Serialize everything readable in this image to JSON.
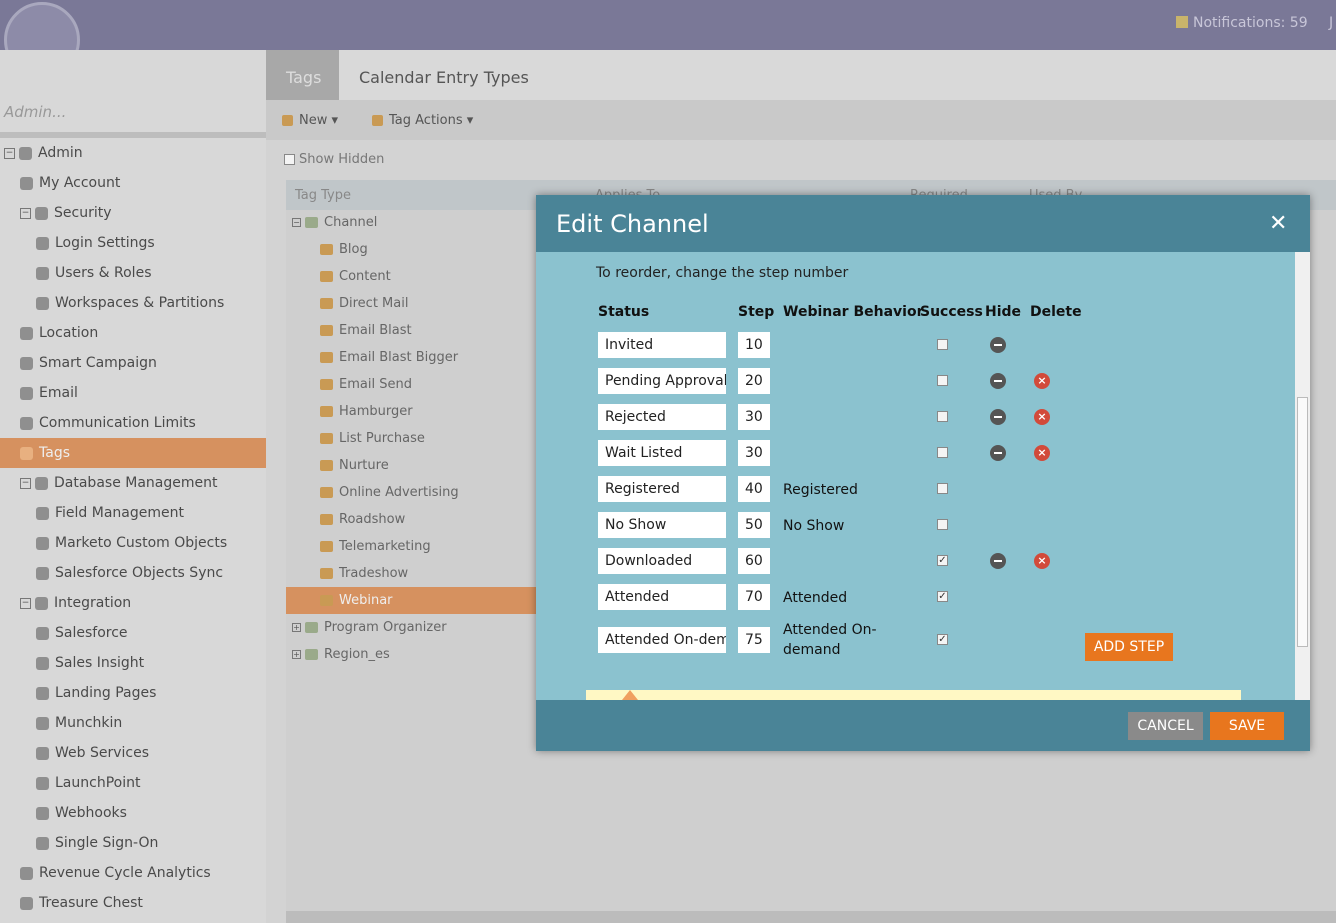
{
  "header": {
    "notifications": "Notifications: 59",
    "user": "J"
  },
  "sidebar": {
    "search": "Admin...",
    "items": [
      {
        "label": "Admin",
        "level": 0,
        "expanded": true
      },
      {
        "label": "My Account",
        "level": 1
      },
      {
        "label": "Security",
        "level": 1,
        "expanded": true
      },
      {
        "label": "Login Settings",
        "level": 2
      },
      {
        "label": "Users & Roles",
        "level": 2
      },
      {
        "label": "Workspaces & Partitions",
        "level": 2
      },
      {
        "label": "Location",
        "level": 1
      },
      {
        "label": "Smart Campaign",
        "level": 1
      },
      {
        "label": "Email",
        "level": 1
      },
      {
        "label": "Communication Limits",
        "level": 1
      },
      {
        "label": "Tags",
        "level": 1,
        "selected": true
      },
      {
        "label": "Database Management",
        "level": 1,
        "expanded": true
      },
      {
        "label": "Field Management",
        "level": 2
      },
      {
        "label": "Marketo Custom Objects",
        "level": 2
      },
      {
        "label": "Salesforce Objects Sync",
        "level": 2
      },
      {
        "label": "Integration",
        "level": 1,
        "expanded": true
      },
      {
        "label": "Salesforce",
        "level": 2
      },
      {
        "label": "Sales Insight",
        "level": 2
      },
      {
        "label": "Landing Pages",
        "level": 2
      },
      {
        "label": "Munchkin",
        "level": 2
      },
      {
        "label": "Web Services",
        "level": 2
      },
      {
        "label": "LaunchPoint",
        "level": 2
      },
      {
        "label": "Webhooks",
        "level": 2
      },
      {
        "label": "Single Sign-On",
        "level": 2
      },
      {
        "label": "Revenue Cycle Analytics",
        "level": 1
      },
      {
        "label": "Treasure Chest",
        "level": 1
      }
    ]
  },
  "tabs": [
    "Tags",
    "Calendar Entry Types"
  ],
  "toolbar": {
    "new": "New",
    "actions": "Tag Actions",
    "show_hidden": "Show Hidden"
  },
  "grid": {
    "columns": [
      "Tag Type",
      "Applies To",
      "Required",
      "Used By"
    ],
    "rows": [
      {
        "label": "Channel",
        "level": 0,
        "expanded": true
      },
      {
        "label": "Blog",
        "level": 1
      },
      {
        "label": "Content",
        "level": 1
      },
      {
        "label": "Direct Mail",
        "level": 1
      },
      {
        "label": "Email Blast",
        "level": 1
      },
      {
        "label": "Email Blast Bigger",
        "level": 1
      },
      {
        "label": "Email Send",
        "level": 1
      },
      {
        "label": "Hamburger",
        "level": 1
      },
      {
        "label": "List Purchase",
        "level": 1
      },
      {
        "label": "Nurture",
        "level": 1
      },
      {
        "label": "Online Advertising",
        "level": 1
      },
      {
        "label": "Roadshow",
        "level": 1
      },
      {
        "label": "Telemarketing",
        "level": 1
      },
      {
        "label": "Tradeshow",
        "level": 1
      },
      {
        "label": "Webinar",
        "level": 1,
        "selected": true
      },
      {
        "label": "Program Organizer",
        "level": 0,
        "expanded": false
      },
      {
        "label": "Region_es",
        "level": 0,
        "expanded": false
      }
    ]
  },
  "dialog": {
    "title": "Edit Channel",
    "instruction": "To reorder, change the step number",
    "columns": [
      "Status",
      "Step",
      "Webinar Behavior",
      "Success",
      "Hide",
      "Delete"
    ],
    "rows": [
      {
        "status": "Invited",
        "step": 10,
        "success": false,
        "hide": true,
        "delete": false
      },
      {
        "status": "Pending Approval",
        "step": 20,
        "success": false,
        "hide": true,
        "delete": true
      },
      {
        "status": "Rejected",
        "step": 30,
        "success": false,
        "hide": true,
        "delete": true
      },
      {
        "status": "Wait Listed",
        "step": 30,
        "success": false,
        "hide": true,
        "delete": true
      },
      {
        "status": "Registered",
        "step": 40,
        "behavior": "Registered",
        "success": false,
        "hide": false,
        "delete": false
      },
      {
        "status": "No Show",
        "step": 50,
        "behavior": "No Show",
        "success": false,
        "hide": false,
        "delete": false
      },
      {
        "status": "Downloaded",
        "step": 60,
        "success": true,
        "hide": true,
        "delete": true
      },
      {
        "status": "Attended",
        "step": 70,
        "behavior": "Attended",
        "success": true,
        "hide": false,
        "delete": false
      },
      {
        "status": "Attended On-dem",
        "step": 75,
        "behavior": "Attended On-demand",
        "success": true,
        "hide": false,
        "delete": false
      }
    ],
    "add_step": "ADD STEP",
    "cancel": "CANCEL",
    "save": "SAVE"
  }
}
